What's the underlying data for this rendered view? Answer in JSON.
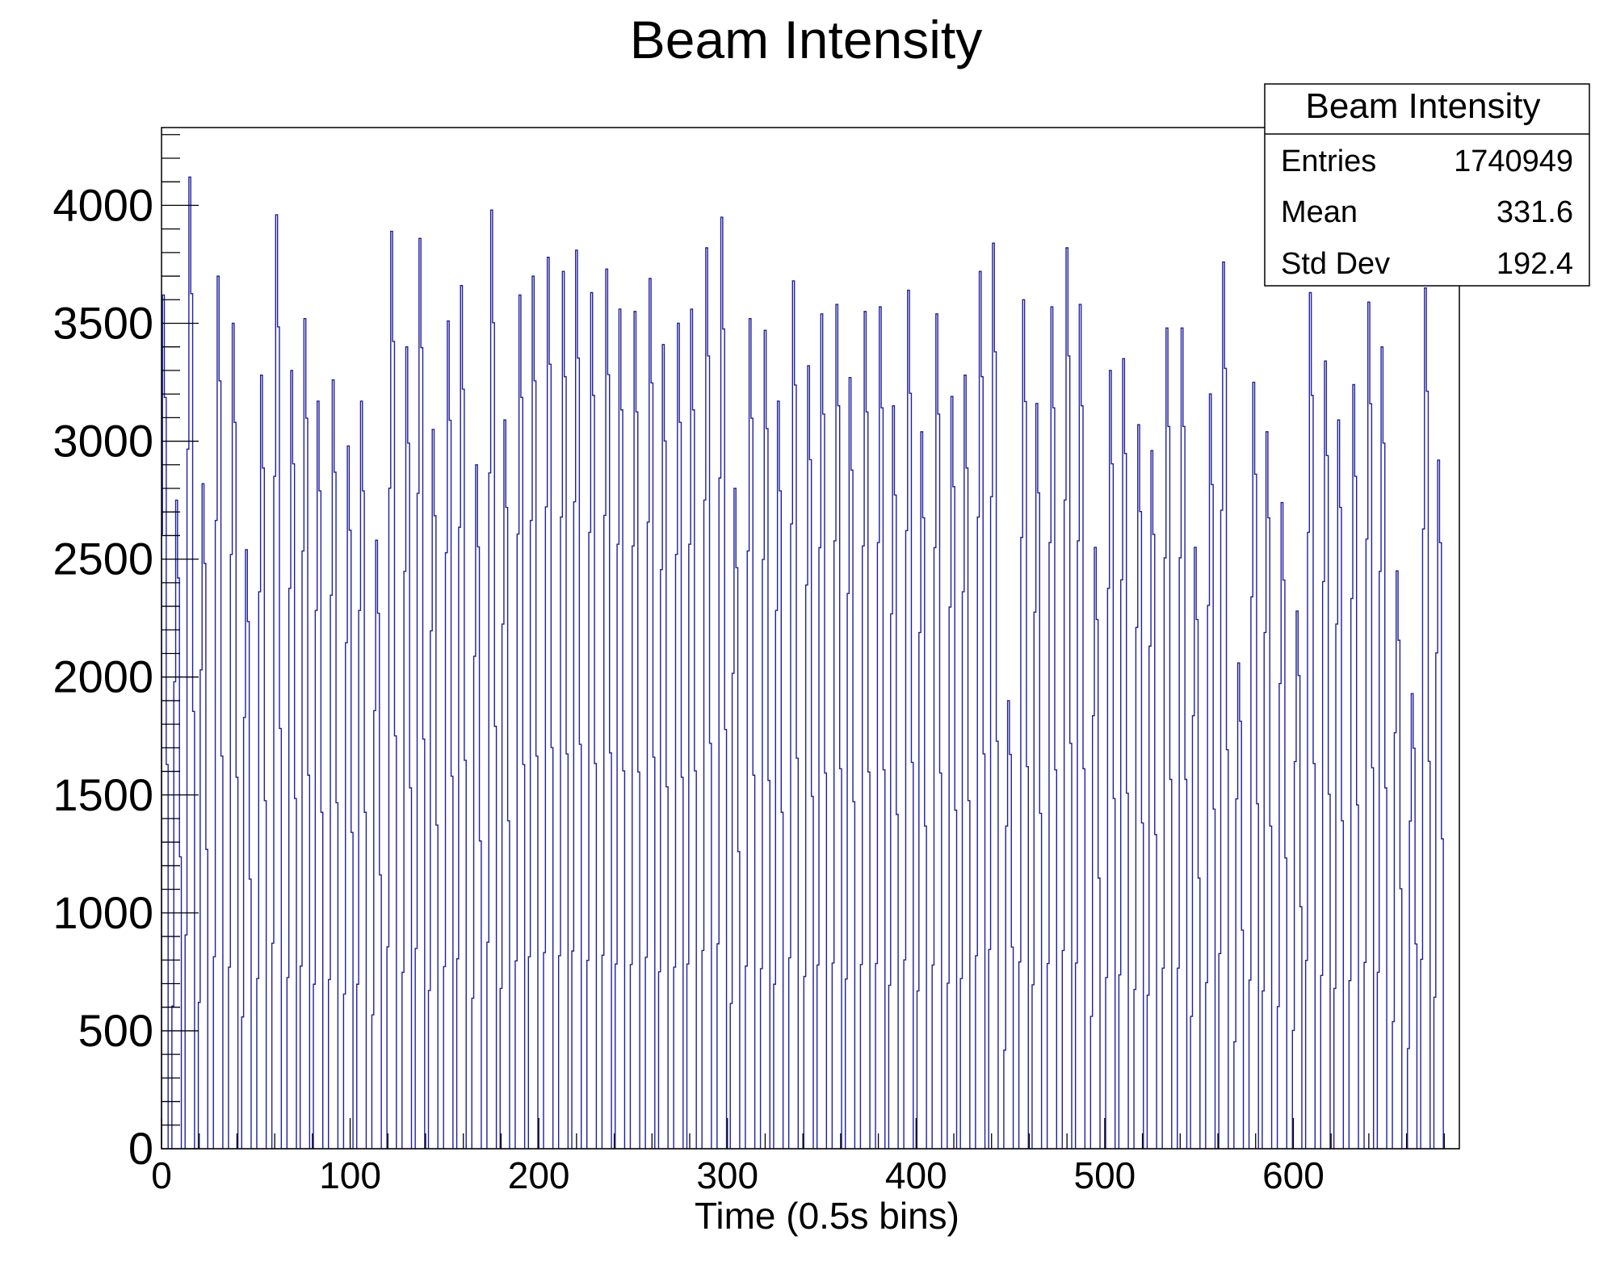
{
  "chart_data": {
    "type": "histogram",
    "title": "Beam Intensity",
    "xlabel": "Time (0.5s bins)",
    "ylabel": "",
    "xlim": [
      0,
      688
    ],
    "ylim": [
      0,
      4330
    ],
    "bin_width": 1,
    "x_ticks": [
      "0",
      "100",
      "200",
      "300",
      "400",
      "500",
      "600"
    ],
    "y_ticks": [
      "0",
      "500",
      "1000",
      "1500",
      "2000",
      "2500",
      "3000",
      "3500",
      "4000"
    ],
    "line_color": "#1f1fa0",
    "grid": false,
    "legend": "none",
    "series": [
      {
        "pulse_period_bins": 7.2,
        "pulse_length_bins": 5,
        "peaks": [
          {
            "x": 1,
            "y": 3620
          },
          {
            "x": 8,
            "y": 2750
          },
          {
            "x": 15,
            "y": 4120
          },
          {
            "x": 22,
            "y": 2820
          },
          {
            "x": 30,
            "y": 3700
          },
          {
            "x": 38,
            "y": 3500
          },
          {
            "x": 45,
            "y": 2540
          },
          {
            "x": 53,
            "y": 3280
          },
          {
            "x": 61,
            "y": 3960
          },
          {
            "x": 69,
            "y": 3300
          },
          {
            "x": 76,
            "y": 3520
          },
          {
            "x": 83,
            "y": 3170
          },
          {
            "x": 91,
            "y": 3260
          },
          {
            "x": 99,
            "y": 2980
          },
          {
            "x": 106,
            "y": 3170
          },
          {
            "x": 114,
            "y": 2580
          },
          {
            "x": 122,
            "y": 3890
          },
          {
            "x": 130,
            "y": 3400
          },
          {
            "x": 137,
            "y": 3860
          },
          {
            "x": 144,
            "y": 3050
          },
          {
            "x": 152,
            "y": 3510
          },
          {
            "x": 159,
            "y": 3660
          },
          {
            "x": 167,
            "y": 2900
          },
          {
            "x": 175,
            "y": 3980
          },
          {
            "x": 182,
            "y": 3090
          },
          {
            "x": 190,
            "y": 3620
          },
          {
            "x": 197,
            "y": 3700
          },
          {
            "x": 205,
            "y": 3780
          },
          {
            "x": 213,
            "y": 3720
          },
          {
            "x": 220,
            "y": 3810
          },
          {
            "x": 228,
            "y": 3630
          },
          {
            "x": 236,
            "y": 3730
          },
          {
            "x": 243,
            "y": 3560
          },
          {
            "x": 251,
            "y": 3550
          },
          {
            "x": 259,
            "y": 3690
          },
          {
            "x": 266,
            "y": 3410
          },
          {
            "x": 274,
            "y": 3500
          },
          {
            "x": 281,
            "y": 3560
          },
          {
            "x": 289,
            "y": 3820
          },
          {
            "x": 297,
            "y": 3950
          },
          {
            "x": 304,
            "y": 2800
          },
          {
            "x": 312,
            "y": 3520
          },
          {
            "x": 320,
            "y": 3470
          },
          {
            "x": 327,
            "y": 3170
          },
          {
            "x": 335,
            "y": 3680
          },
          {
            "x": 343,
            "y": 3320
          },
          {
            "x": 350,
            "y": 3540
          },
          {
            "x": 358,
            "y": 3580
          },
          {
            "x": 365,
            "y": 3270
          },
          {
            "x": 373,
            "y": 3550
          },
          {
            "x": 381,
            "y": 3570
          },
          {
            "x": 388,
            "y": 3150
          },
          {
            "x": 396,
            "y": 3640
          },
          {
            "x": 403,
            "y": 3040
          },
          {
            "x": 411,
            "y": 3540
          },
          {
            "x": 419,
            "y": 3190
          },
          {
            "x": 426,
            "y": 3280
          },
          {
            "x": 434,
            "y": 3720
          },
          {
            "x": 441,
            "y": 3840
          },
          {
            "x": 449,
            "y": 1900
          },
          {
            "x": 457,
            "y": 3600
          },
          {
            "x": 464,
            "y": 3160
          },
          {
            "x": 472,
            "y": 3570
          },
          {
            "x": 480,
            "y": 3820
          },
          {
            "x": 487,
            "y": 3580
          },
          {
            "x": 495,
            "y": 2550
          },
          {
            "x": 503,
            "y": 3300
          },
          {
            "x": 510,
            "y": 3350
          },
          {
            "x": 518,
            "y": 3070
          },
          {
            "x": 525,
            "y": 2960
          },
          {
            "x": 533,
            "y": 3480
          },
          {
            "x": 541,
            "y": 3480
          },
          {
            "x": 548,
            "y": 2550
          },
          {
            "x": 556,
            "y": 3200
          },
          {
            "x": 563,
            "y": 3760
          },
          {
            "x": 571,
            "y": 2060
          },
          {
            "x": 579,
            "y": 3250
          },
          {
            "x": 586,
            "y": 3040
          },
          {
            "x": 594,
            "y": 2740
          },
          {
            "x": 602,
            "y": 2280
          },
          {
            "x": 609,
            "y": 3630
          },
          {
            "x": 617,
            "y": 3340
          },
          {
            "x": 624,
            "y": 3090
          },
          {
            "x": 632,
            "y": 3240
          },
          {
            "x": 640,
            "y": 3590
          },
          {
            "x": 647,
            "y": 3400
          },
          {
            "x": 655,
            "y": 2450
          },
          {
            "x": 663,
            "y": 1930
          },
          {
            "x": 670,
            "y": 3650
          },
          {
            "x": 677,
            "y": 2920
          }
        ]
      }
    ]
  },
  "stats_box": {
    "title": "Beam Intensity",
    "rows": [
      {
        "label": "Entries",
        "value": "1740949"
      },
      {
        "label": "Mean",
        "value": "331.6"
      },
      {
        "label": "Std Dev",
        "value": "192.4"
      }
    ]
  }
}
